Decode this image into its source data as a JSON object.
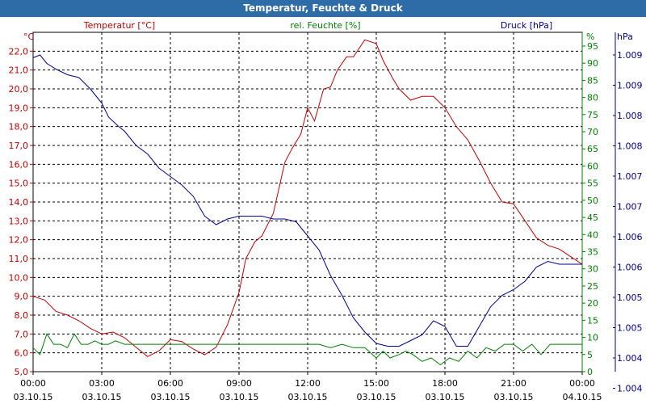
{
  "window": {
    "title": "Temperatur, Feuchte & Druck"
  },
  "chart_data": {
    "type": "line",
    "title": "Temperatur, Feuchte & Druck",
    "colors": {
      "temperature": "#c00000",
      "humidity": "#008000",
      "pressure": "#000090",
      "grid": "#000000"
    },
    "x_ticks": [
      {
        "time": "00:00",
        "date": "03.10.15"
      },
      {
        "time": "03:00",
        "date": "03.10.15"
      },
      {
        "time": "06:00",
        "date": "03.10.15"
      },
      {
        "time": "09:00",
        "date": "03.10.15"
      },
      {
        "time": "12:00",
        "date": "03.10.15"
      },
      {
        "time": "15:00",
        "date": "03.10.15"
      },
      {
        "time": "18:00",
        "date": "03.10.15"
      },
      {
        "time": "21:00",
        "date": "03.10.15"
      },
      {
        "time": "00:00",
        "date": "04.10.15"
      }
    ],
    "xlim_hours": [
      0,
      24
    ],
    "axes": {
      "temperature": {
        "label": "Temperatur [°C]",
        "unit": "°C",
        "ylim": [
          5.0,
          23.0
        ],
        "ticks": [
          "5,0",
          "6,0",
          "7,0",
          "8,0",
          "9,0",
          "10,0",
          "11,0",
          "12,0",
          "13,0",
          "14,0",
          "15,0",
          "16,0",
          "17,0",
          "18,0",
          "19,0",
          "20,0",
          "21,0",
          "22,0"
        ]
      },
      "humidity": {
        "label": "rel. Feuchte [%]",
        "unit": "%",
        "ylim": [
          0,
          99
        ],
        "ticks": [
          "0",
          "5",
          "10",
          "15",
          "20",
          "25",
          "30",
          "35",
          "40",
          "45",
          "50",
          "55",
          "60",
          "65",
          "70",
          "75",
          "80",
          "85",
          "90",
          "95"
        ]
      },
      "pressure": {
        "label": "Druck [hPa]",
        "unit": "hPa",
        "ylim": [
          1003.5,
          1009.5
        ],
        "ticks": [
          "1.004",
          "1.004",
          "1.005",
          "1.005",
          "1.006",
          "1.006",
          "1.007",
          "1.007",
          "1.008",
          "1.008",
          "1.009",
          "1.009"
        ]
      }
    },
    "series": [
      {
        "name": "Temperatur",
        "axis": "temperature",
        "hours": [
          0,
          0.5,
          1,
          1.5,
          2,
          2.5,
          3,
          3.5,
          4,
          4.5,
          5,
          5.5,
          6,
          6.5,
          7,
          7.5,
          8,
          8.5,
          9,
          9.3,
          9.7,
          10,
          10.5,
          11,
          11.3,
          11.7,
          12,
          12.3,
          12.7,
          13,
          13.3,
          13.7,
          14,
          14.5,
          15,
          15.3,
          15.7,
          16,
          16.5,
          17,
          17.5,
          18,
          18.5,
          19,
          19.5,
          20,
          20.5,
          21,
          21.5,
          22,
          22.5,
          23,
          23.5,
          24
        ],
        "values": [
          9.0,
          8.8,
          8.2,
          8.0,
          7.7,
          7.3,
          7.0,
          7.1,
          6.8,
          6.3,
          5.8,
          6.1,
          6.7,
          6.6,
          6.2,
          5.9,
          6.3,
          7.5,
          9.2,
          11.0,
          11.9,
          12.2,
          13.4,
          16.1,
          16.8,
          17.6,
          19.0,
          18.3,
          20.0,
          20.1,
          21.0,
          21.7,
          21.7,
          22.6,
          22.4,
          21.5,
          20.6,
          20.0,
          19.4,
          19.6,
          19.6,
          19.0,
          18.0,
          17.3,
          16.2,
          15.0,
          14.0,
          13.9,
          13.0,
          12.1,
          11.7,
          11.5,
          11.1,
          10.7
        ]
      },
      {
        "name": "rel. Feuchte",
        "axis": "humidity",
        "hours": [
          0,
          0.3,
          0.6,
          0.9,
          1.2,
          1.5,
          1.8,
          2.1,
          2.4,
          2.7,
          3,
          3.3,
          3.6,
          4,
          5,
          6,
          7,
          8,
          9,
          10,
          11,
          12,
          12.5,
          13,
          13.5,
          14,
          14.5,
          15,
          15.3,
          15.6,
          16,
          16.3,
          16.6,
          17,
          17.4,
          17.8,
          18.2,
          18.6,
          19,
          19.4,
          19.8,
          20.2,
          20.6,
          21,
          21.4,
          21.8,
          22.2,
          22.6,
          23,
          23.5,
          24
        ],
        "values": [
          7,
          5,
          11,
          8,
          8,
          7,
          11,
          8,
          8,
          9,
          8,
          8,
          9,
          8,
          8,
          8,
          8,
          8,
          8,
          8,
          8,
          8,
          8,
          7,
          8,
          7,
          7,
          4,
          6,
          4,
          5,
          6,
          5,
          3,
          4,
          2,
          4,
          3,
          6,
          4,
          7,
          6,
          8,
          8,
          6,
          8,
          5,
          8,
          8,
          8,
          8
        ]
      },
      {
        "name": "Druck",
        "axis": "pressure",
        "hours": [
          0,
          0.3,
          0.6,
          1,
          1.5,
          2,
          2.5,
          2.8,
          3,
          3.3,
          3.7,
          4,
          4.5,
          5,
          5.5,
          6,
          6.5,
          7,
          7.5,
          8,
          8.5,
          9,
          9.5,
          10,
          10.5,
          11,
          11.5,
          12,
          12.5,
          13,
          13.5,
          14,
          14.5,
          15,
          15.5,
          16,
          16.5,
          17,
          17.5,
          18,
          18.5,
          19,
          19.5,
          20,
          20.5,
          21,
          21.5,
          22,
          22.5,
          23,
          23.5,
          24
        ],
        "values": [
          1009.05,
          1009.1,
          1008.95,
          1008.85,
          1008.75,
          1008.7,
          1008.5,
          1008.35,
          1008.25,
          1008.0,
          1007.85,
          1007.75,
          1007.5,
          1007.35,
          1007.1,
          1006.95,
          1006.8,
          1006.6,
          1006.25,
          1006.1,
          1006.2,
          1006.25,
          1006.25,
          1006.25,
          1006.2,
          1006.2,
          1006.15,
          1005.9,
          1005.65,
          1005.2,
          1004.85,
          1004.45,
          1004.2,
          1004.0,
          1003.95,
          1003.95,
          1004.05,
          1004.15,
          1004.4,
          1004.3,
          1003.95,
          1003.95,
          1004.3,
          1004.65,
          1004.85,
          1004.95,
          1005.1,
          1005.35,
          1005.45,
          1005.4,
          1005.4,
          1005.4
        ]
      }
    ]
  }
}
